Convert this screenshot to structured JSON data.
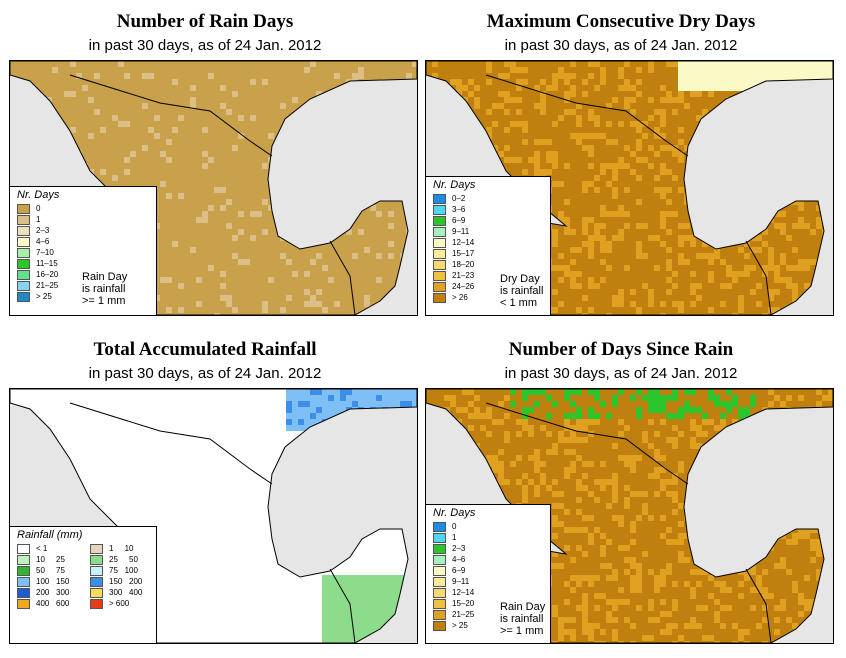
{
  "panels": [
    {
      "title": "Number of Rain Days",
      "subtitle": "in past 30 days, as of  24 Jan. 2012",
      "legend_title": "Nr. Days",
      "legend": [
        {
          "label": "0",
          "color": "#c9a14a"
        },
        {
          "label": "1",
          "color": "#dcbf86"
        },
        {
          "label": "2–3",
          "color": "#efe0bd"
        },
        {
          "label": "4–6",
          "color": "#fbf9c6"
        },
        {
          "label": "7–10",
          "color": "#a8f0a8"
        },
        {
          "label": "11–15",
          "color": "#2cc52c"
        },
        {
          "label": "16–20",
          "color": "#60e090"
        },
        {
          "label": "21–25",
          "color": "#87d2ee"
        },
        {
          "label": "> 25",
          "color": "#1e88c8"
        }
      ],
      "note": [
        "Rain Day",
        "is rainfall",
        ">= 1 mm"
      ]
    },
    {
      "title": "Maximum Consecutive Dry Days",
      "subtitle": "in past 30 days, as of  24 Jan. 2012",
      "legend_title": "Nr. Days",
      "legend": [
        {
          "label": "0–2",
          "color": "#1a8ee6"
        },
        {
          "label": "3–6",
          "color": "#50d8f0"
        },
        {
          "label": "6–9",
          "color": "#2cc52c"
        },
        {
          "label": "9–11",
          "color": "#a8f0c0"
        },
        {
          "label": "12–14",
          "color": "#fbf9c6"
        },
        {
          "label": "15–17",
          "color": "#fbec9a"
        },
        {
          "label": "18–20",
          "color": "#f6d970"
        },
        {
          "label": "21–23",
          "color": "#f0c040"
        },
        {
          "label": "24–26",
          "color": "#e0a020"
        },
        {
          "label": "> 26",
          "color": "#c08010"
        }
      ],
      "note": [
        "Dry Day",
        "is rainfall",
        "< 1 mm"
      ]
    },
    {
      "title": "Total Accumulated Rainfall",
      "subtitle": "in past 30 days, as of  24 Jan. 2012",
      "legend_title": "Rainfall (mm)",
      "legend": [
        {
          "label": "< 1",
          "color": "#ffffff"
        },
        {
          "label": "1     10",
          "color": "#e6d6bc"
        },
        {
          "label": "10     25",
          "color": "#bff0bf"
        },
        {
          "label": "25     50",
          "color": "#8cdc8c"
        },
        {
          "label": "50     75",
          "color": "#34b434"
        },
        {
          "label": "75   100",
          "color": "#c8f0f8"
        },
        {
          "label": "100   150",
          "color": "#7ec0f6"
        },
        {
          "label": "150   200",
          "color": "#3c8ee8"
        },
        {
          "label": "200   300",
          "color": "#1e5cd4"
        },
        {
          "label": "300   400",
          "color": "#f6dc60"
        },
        {
          "label": "400   600",
          "color": "#f0a820"
        },
        {
          "label": "> 600",
          "color": "#e83a14"
        }
      ],
      "note": []
    },
    {
      "title": "Number of Days Since Rain",
      "subtitle": "in past 30 days, as of  24 Jan. 2012",
      "legend_title": "Nr. Days",
      "legend": [
        {
          "label": "0",
          "color": "#1a8ee6"
        },
        {
          "label": "1",
          "color": "#50d8f0"
        },
        {
          "label": "2–3",
          "color": "#2cc52c"
        },
        {
          "label": "4–6",
          "color": "#a8f0c0"
        },
        {
          "label": "6–9",
          "color": "#fbf9c6"
        },
        {
          "label": "9–11",
          "color": "#fbec9a"
        },
        {
          "label": "12–14",
          "color": "#f6d970"
        },
        {
          "label": "15–20",
          "color": "#f0c040"
        },
        {
          "label": "21–25",
          "color": "#e0a020"
        },
        {
          "label": "> 25",
          "color": "#c08010"
        }
      ],
      "note": [
        "Rain Day",
        "is rainfall",
        ">= 1 mm"
      ]
    }
  ]
}
